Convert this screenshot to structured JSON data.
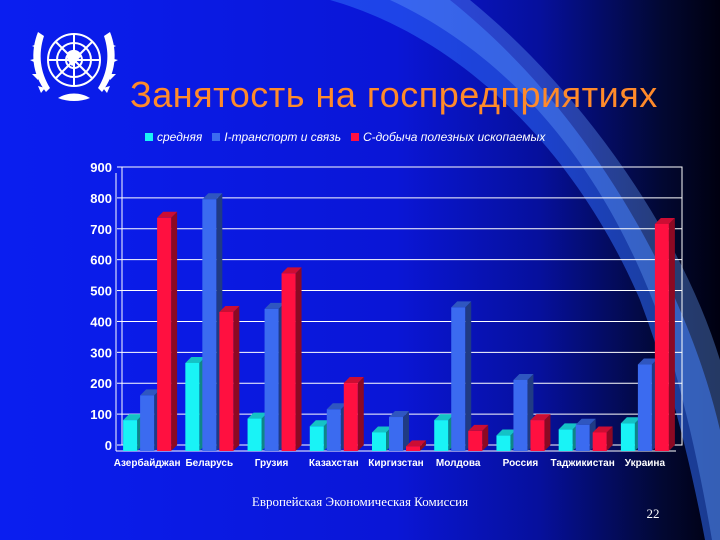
{
  "slide": {
    "title": "Занятость на госпредприятиях",
    "footer": "Европейская Экономическая Комиссия",
    "page_number": "22",
    "logo": "united-nations-emblem"
  },
  "colors": {
    "background": "#0a16d6",
    "title": "#ff8a2a",
    "series": [
      "#19f3f6",
      "#3b6bf0",
      "#ff1040"
    ]
  },
  "chart_data": {
    "type": "bar",
    "title": "",
    "xlabel": "",
    "ylabel": "",
    "ylim": [
      0,
      900
    ],
    "yticks": [
      "0",
      "100",
      "200",
      "300",
      "400",
      "500",
      "600",
      "700",
      "800",
      "900"
    ],
    "grid": true,
    "legend_position": "top",
    "categories": [
      "Азербайджан",
      "Беларусь",
      "Грузия",
      "Казахстан",
      "Киргизстан",
      "Молдова",
      "Россия",
      "Таджикистан",
      "Украина"
    ],
    "series": [
      {
        "name": "средняя",
        "values": [
          100,
          285,
          105,
          80,
          60,
          100,
          50,
          70,
          90
        ]
      },
      {
        "name": "I-транспорт и связь",
        "values": [
          180,
          815,
          460,
          135,
          110,
          465,
          230,
          85,
          280
        ]
      },
      {
        "name": "C-добыча полезных ископаемых",
        "values": [
          755,
          450,
          575,
          220,
          15,
          65,
          100,
          60,
          735
        ]
      }
    ]
  }
}
